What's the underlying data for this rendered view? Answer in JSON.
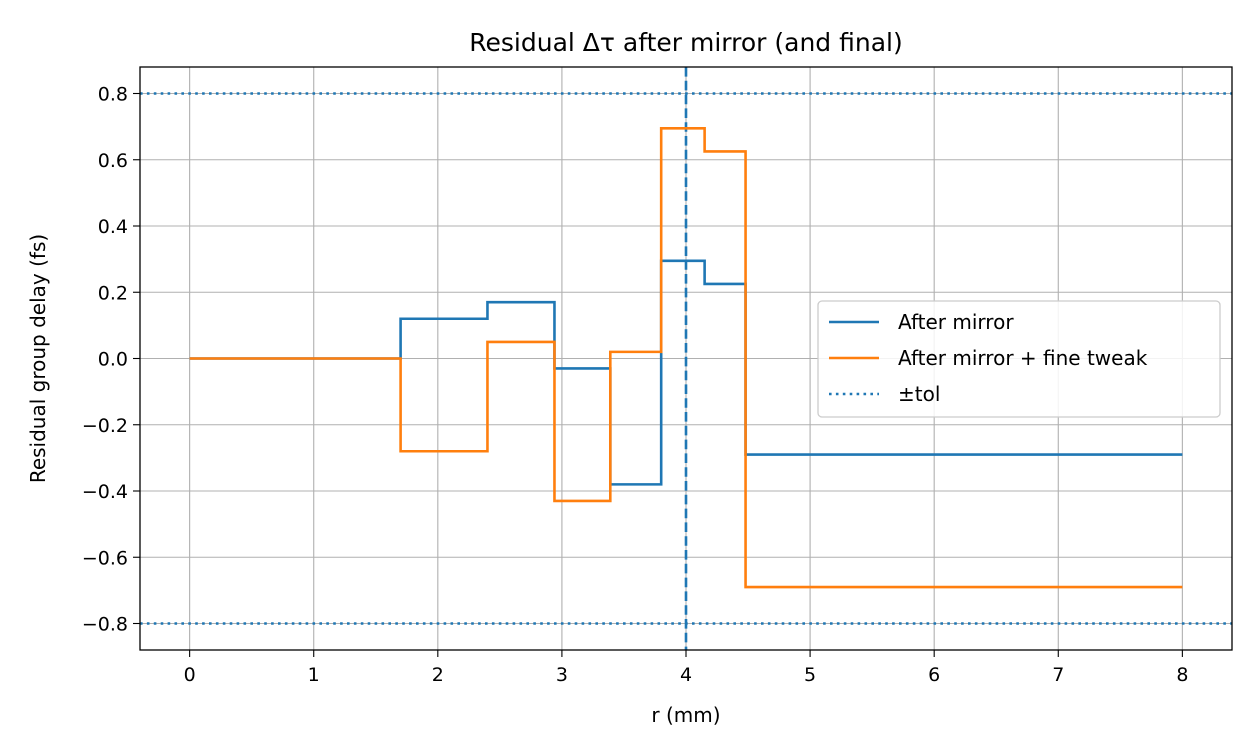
{
  "chart_data": {
    "type": "line",
    "title": "Residual Δτ after mirror (and final)",
    "xlabel": "r (mm)",
    "ylabel": "Residual group delay (fs)",
    "xlim": [
      -0.4,
      8.4
    ],
    "ylim": [
      -0.88,
      0.88
    ],
    "x_ticks": [
      0,
      1,
      2,
      3,
      4,
      5,
      6,
      7,
      8
    ],
    "y_ticks": [
      0.8,
      0.6,
      0.4,
      0.2,
      0.0,
      -0.2,
      -0.4,
      -0.6,
      -0.8
    ],
    "x_tick_labels": [
      "0",
      "1",
      "2",
      "3",
      "4",
      "5",
      "6",
      "7",
      "8"
    ],
    "y_tick_labels": [
      "0.8",
      "0.6",
      "0.4",
      "0.2",
      "0.0",
      "−0.2",
      "−0.4",
      "−0.6",
      "−0.8"
    ],
    "grid": true,
    "legend_position": "center-right",
    "step_style": "post",
    "series": [
      {
        "name": "After mirror",
        "color": "#1f77b4",
        "x": [
          0,
          1.7,
          2.4,
          2.94,
          3.39,
          3.8,
          4.15,
          4.48,
          8.0
        ],
        "y": [
          0.0,
          0.12,
          0.17,
          -0.03,
          -0.38,
          0.295,
          0.225,
          -0.29,
          -0.29
        ]
      },
      {
        "name": "After mirror + fine tweak",
        "color": "#ff7f0e",
        "x": [
          0,
          1.7,
          2.4,
          2.94,
          3.39,
          3.8,
          4.15,
          4.48,
          8.0
        ],
        "y": [
          0.0,
          -0.28,
          0.05,
          -0.43,
          0.02,
          0.695,
          0.625,
          -0.69,
          -0.69
        ]
      }
    ],
    "tolerance": {
      "name": "±tol",
      "value": 0.8,
      "color": "#1f77b4",
      "style": "dotted"
    },
    "vline": {
      "x": 4.0,
      "color": "#1f77b4",
      "style": "dashed"
    }
  }
}
